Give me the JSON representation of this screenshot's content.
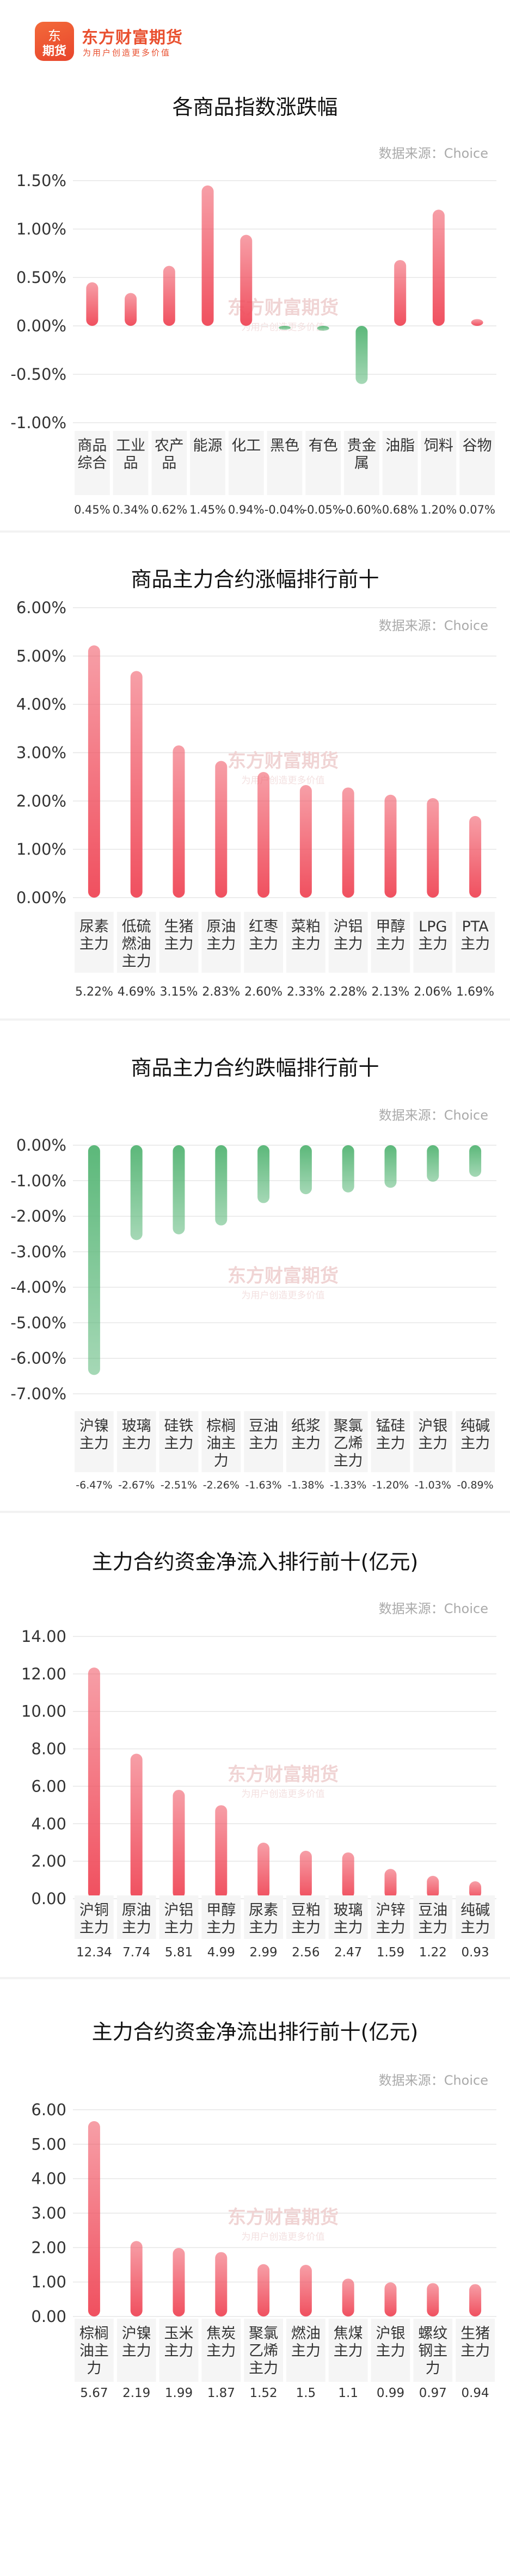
{
  "brand": {
    "logo_mark_top": "东",
    "logo_mark_bottom": "期货",
    "name": "东方财富期货",
    "slogan": "为用户创造更多价值"
  },
  "source_label": "数据来源：Choice",
  "colors": {
    "up": "#f0505f",
    "down": "#5cb87a",
    "grid": "#e6e6e6",
    "label_bg": "#f5f5f5"
  },
  "chart_data": [
    {
      "type": "bar",
      "title": "各商品指数涨跌幅",
      "categories": [
        "商品\n综合",
        "工业\n品",
        "农产\n品",
        "能源",
        "化工",
        "黑色",
        "有色",
        "贵金\n属",
        "油脂",
        "饲料",
        "谷物"
      ],
      "values": [
        0.45,
        0.34,
        0.62,
        1.45,
        0.94,
        -0.04,
        -0.05,
        -0.6,
        0.68,
        1.2,
        0.07
      ],
      "value_labels": [
        "0.45%",
        "0.34%",
        "0.62%",
        "1.45%",
        "0.94%",
        "-0.04%",
        "-0.05%",
        "-0.60%",
        "0.68%",
        "1.20%",
        "0.07%"
      ],
      "yticks": [
        "1.50%",
        "1.00%",
        "0.50%",
        "0.00%",
        "-0.50%",
        "-1.00%"
      ],
      "ylim": [
        -1.0,
        1.5
      ],
      "grid": true
    },
    {
      "type": "bar",
      "title": "商品主力合约涨幅排行前十",
      "categories": [
        "尿素\n主力",
        "低硫\n燃油\n主力",
        "生猪\n主力",
        "原油\n主力",
        "红枣\n主力",
        "菜粕\n主力",
        "沪铝\n主力",
        "甲醇\n主力",
        "LPG\n主力",
        "PTA\n主力"
      ],
      "values": [
        5.22,
        4.69,
        3.15,
        2.83,
        2.6,
        2.33,
        2.28,
        2.13,
        2.06,
        1.69
      ],
      "value_labels": [
        "5.22%",
        "4.69%",
        "3.15%",
        "2.83%",
        "2.60%",
        "2.33%",
        "2.28%",
        "2.13%",
        "2.06%",
        "1.69%"
      ],
      "yticks": [
        "6.00%",
        "5.00%",
        "4.00%",
        "3.00%",
        "2.00%",
        "1.00%",
        "0.00%"
      ],
      "ylim": [
        0,
        6
      ],
      "grid": true
    },
    {
      "type": "bar",
      "title": "商品主力合约跌幅排行前十",
      "categories": [
        "沪镍\n主力",
        "玻璃\n主力",
        "硅铁\n主力",
        "棕榈\n油主\n力",
        "豆油\n主力",
        "纸浆\n主力",
        "聚氯\n乙烯\n主力",
        "锰硅\n主力",
        "沪银\n主力",
        "纯碱\n主力"
      ],
      "values": [
        -6.47,
        -2.67,
        -2.51,
        -2.26,
        -1.63,
        -1.38,
        -1.33,
        -1.2,
        -1.03,
        -0.89
      ],
      "value_labels": [
        "-6.47%",
        "-2.67%",
        "-2.51%",
        "-2.26%",
        "-1.63%",
        "-1.38%",
        "-1.33%",
        "-1.20%",
        "-1.03%",
        "-0.89%"
      ],
      "yticks": [
        "0.00%",
        "-1.00%",
        "-2.00%",
        "-3.00%",
        "-4.00%",
        "-5.00%",
        "-6.00%",
        "-7.00%"
      ],
      "ylim": [
        -7,
        0
      ],
      "grid": true
    },
    {
      "type": "bar",
      "title": "主力合约资金净流入排行前十(亿元)",
      "categories": [
        "沪铜\n主力",
        "原油\n主力",
        "沪铝\n主力",
        "甲醇\n主力",
        "尿素\n主力",
        "豆粕\n主力",
        "玻璃\n主力",
        "沪锌\n主力",
        "豆油\n主力",
        "纯碱\n主力"
      ],
      "values": [
        12.34,
        7.74,
        5.81,
        4.99,
        2.99,
        2.56,
        2.47,
        1.59,
        1.22,
        0.93
      ],
      "value_labels": [
        "12.34",
        "7.74",
        "5.81",
        "4.99",
        "2.99",
        "2.56",
        "2.47",
        "1.59",
        "1.22",
        "0.93"
      ],
      "yticks": [
        "14.00",
        "12.00",
        "10.00",
        "8.00",
        "6.00",
        "4.00",
        "2.00",
        "0.00"
      ],
      "ylim": [
        0,
        14
      ],
      "grid": true
    },
    {
      "type": "bar",
      "title": "主力合约资金净流出排行前十(亿元)",
      "categories": [
        "棕榈\n油主\n力",
        "沪镍\n主力",
        "玉米\n主力",
        "焦炭\n主力",
        "聚氯\n乙烯\n主力",
        "燃油\n主力",
        "焦煤\n主力",
        "沪银\n主力",
        "螺纹\n钢主\n力",
        "生猪\n主力"
      ],
      "values": [
        5.67,
        2.19,
        1.99,
        1.87,
        1.52,
        1.5,
        1.1,
        0.99,
        0.97,
        0.94
      ],
      "value_labels": [
        "5.67",
        "2.19",
        "1.99",
        "1.87",
        "1.52",
        "1.5",
        "1.1",
        "0.99",
        "0.97",
        "0.94"
      ],
      "yticks": [
        "6.00",
        "5.00",
        "4.00",
        "3.00",
        "2.00",
        "1.00",
        "0.00"
      ],
      "ylim": [
        0,
        6
      ],
      "grid": true
    }
  ]
}
